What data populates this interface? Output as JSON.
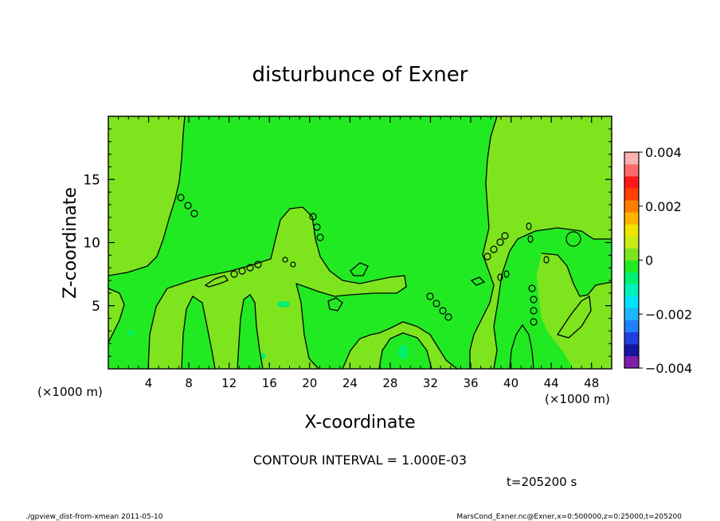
{
  "chart_data": {
    "type": "heatmap",
    "title": "disturbunce of Exner",
    "xlabel": "X-coordinate",
    "ylabel": "Z-coordinate",
    "x_unit": "(×1000 m)",
    "y_unit": "(×1000 m)",
    "xlim": [
      0,
      50
    ],
    "ylim": [
      0,
      20
    ],
    "x_ticks": [
      4,
      8,
      12,
      16,
      20,
      24,
      28,
      32,
      36,
      40,
      44,
      48
    ],
    "y_ticks": [
      5,
      10,
      15
    ],
    "contour_interval_text": "CONTOUR INTERVAL = 1.000E-03",
    "time_text": "t=205200 s",
    "colorbar": {
      "min": -0.004,
      "max": 0.004,
      "tick_labels": [
        "0.004",
        "0.002",
        "0",
        "−0.002",
        "−0.004"
      ],
      "tick_values": [
        0.004,
        0.002,
        0,
        -0.002,
        -0.004
      ],
      "colors": [
        "#7f1fa7",
        "#1515a0",
        "#1f3fdf",
        "#1f7fff",
        "#1fb4ff",
        "#00e0ff",
        "#00f2b8",
        "#00f070",
        "#22ea22",
        "#7ee41e",
        "#c8ec18",
        "#f0e400",
        "#ffb400",
        "#ff7e00",
        "#ff4000",
        "#ff1818",
        "#ff6a6a",
        "#ffb0b0"
      ]
    },
    "background_value_color": "#22ea22",
    "region_colors": {
      "slightly_positive": "#7ee41e",
      "near_zero": "#22ea22"
    }
  },
  "footer": {
    "left": "./gpview_dist-from-xmean  2011-05-10",
    "right": "MarsCond_Exner.nc@Exner,x=0:500000,z=0:25000,t=205200"
  }
}
